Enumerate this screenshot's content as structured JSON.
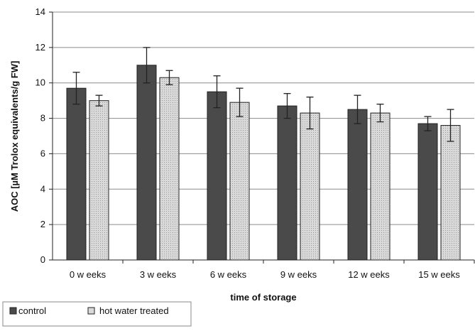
{
  "chart_data": {
    "type": "bar",
    "categories": [
      "0 w eeks",
      "3 w eeks",
      "6 w eeks",
      "9 w eeks",
      "12 w eeks",
      "15 w eeks"
    ],
    "series": [
      {
        "name": "control",
        "values": [
          9.7,
          11.0,
          9.5,
          8.7,
          8.5,
          7.7
        ],
        "errors": [
          0.9,
          1.0,
          0.9,
          0.7,
          0.8,
          0.4
        ],
        "color": "#4a4a4a"
      },
      {
        "name": "hot water treated",
        "values": [
          9.0,
          10.3,
          8.9,
          8.3,
          8.3,
          7.6
        ],
        "errors": [
          0.3,
          0.4,
          0.8,
          0.9,
          0.5,
          0.9
        ],
        "color": "#d9d9d9"
      }
    ],
    "xlabel": "time of storage",
    "ylabel": "AOC [µM Trolox equivalents/g FW]",
    "ylim": [
      0,
      14
    ],
    "yticks": [
      0,
      2,
      4,
      6,
      8,
      10,
      12,
      14
    ],
    "grid": true,
    "legend_position": "bottom-left"
  }
}
